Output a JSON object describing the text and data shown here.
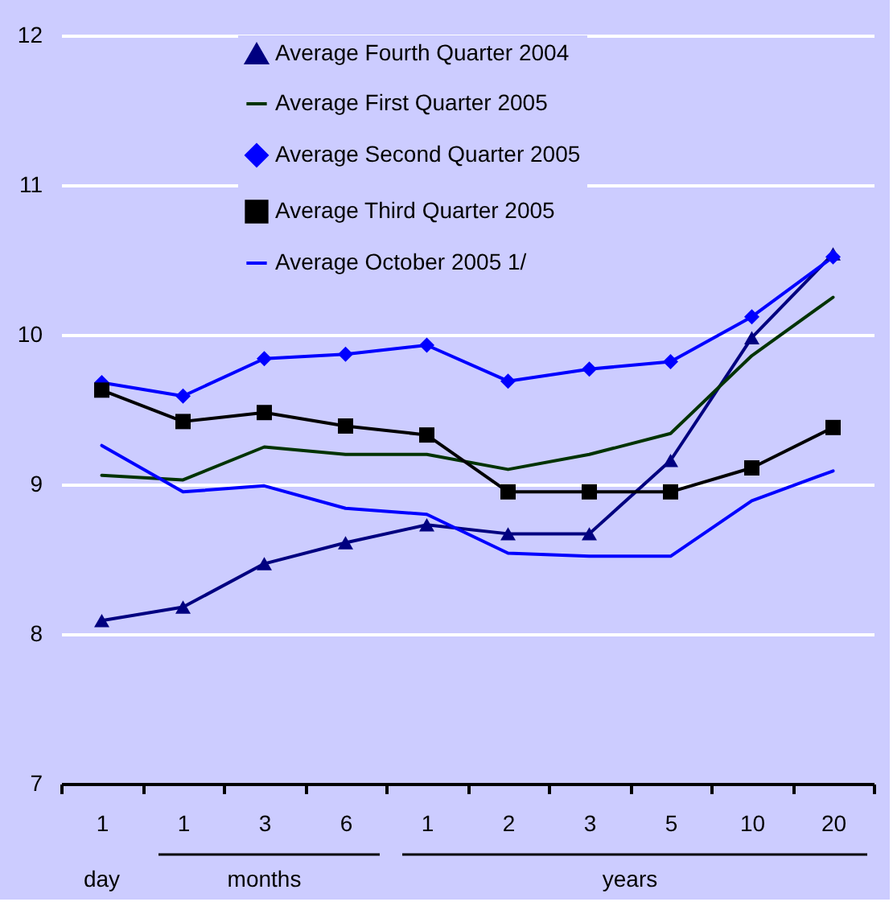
{
  "chart_data": {
    "type": "line",
    "categories": [
      "1",
      "1",
      "3",
      "6",
      "1",
      "2",
      "3",
      "5",
      "10",
      "20"
    ],
    "series": [
      {
        "name": "Average Fourth Quarter 2004",
        "color": "#000080",
        "marker": "triangle",
        "values": [
          8.09,
          8.18,
          8.47,
          8.61,
          8.73,
          8.67,
          8.67,
          9.16,
          9.98,
          10.54
        ]
      },
      {
        "name": "Average First Quarter 2005",
        "color": "#003300",
        "marker": "none",
        "values": [
          9.06,
          9.03,
          9.25,
          9.2,
          9.2,
          9.1,
          9.2,
          9.34,
          9.86,
          10.25
        ]
      },
      {
        "name": "Average Second Quarter 2005",
        "color": "#0000ff",
        "marker": "diamond",
        "values": [
          9.68,
          9.59,
          9.84,
          9.87,
          9.93,
          9.69,
          9.77,
          9.82,
          10.12,
          10.52
        ]
      },
      {
        "name": "Average Third Quarter 2005",
        "color": "#000000",
        "marker": "square",
        "values": [
          9.63,
          9.42,
          9.48,
          9.39,
          9.33,
          8.95,
          8.95,
          8.95,
          9.11,
          9.38
        ]
      },
      {
        "name": "Average October 2005 1/",
        "color": "#0000ff",
        "marker": "none",
        "values": [
          9.26,
          8.95,
          8.99,
          8.84,
          8.8,
          8.54,
          8.52,
          8.52,
          8.89,
          9.09
        ]
      }
    ],
    "ylim": [
      7,
      12
    ],
    "yticks": [
      7,
      8,
      9,
      10,
      11,
      12
    ],
    "grid": "y",
    "legend": "top",
    "annotations": [
      "day",
      "months",
      "years"
    ]
  }
}
